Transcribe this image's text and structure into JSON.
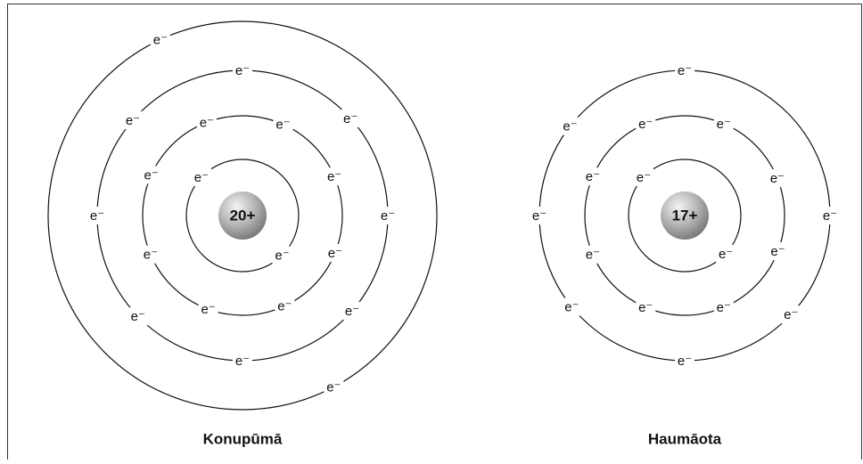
{
  "atoms": [
    {
      "nucleus": "20+",
      "name": "Konupūmā",
      "shells": [
        [
          "e⁻",
          "e⁻"
        ],
        [
          "e⁻",
          "e⁻",
          "e⁻",
          "e⁻",
          "e⁻",
          "e⁻",
          "e⁻",
          "e⁻"
        ],
        [
          "e⁻",
          "e⁻",
          "e⁻",
          "e⁻",
          "e⁻",
          "e⁻",
          "e⁻",
          "e⁻"
        ],
        [
          "e⁻",
          "e⁻"
        ]
      ]
    },
    {
      "nucleus": "17+",
      "name": "Haumāota",
      "shells": [
        [
          "e⁻",
          "e⁻"
        ],
        [
          "e⁻",
          "e⁻",
          "e⁻",
          "e⁻",
          "e⁻",
          "e⁻",
          "e⁻",
          "e⁻"
        ],
        [
          "e⁻",
          "e⁻",
          "e⁻",
          "e⁻",
          "e⁻",
          "e⁻",
          "e⁻"
        ]
      ]
    }
  ]
}
